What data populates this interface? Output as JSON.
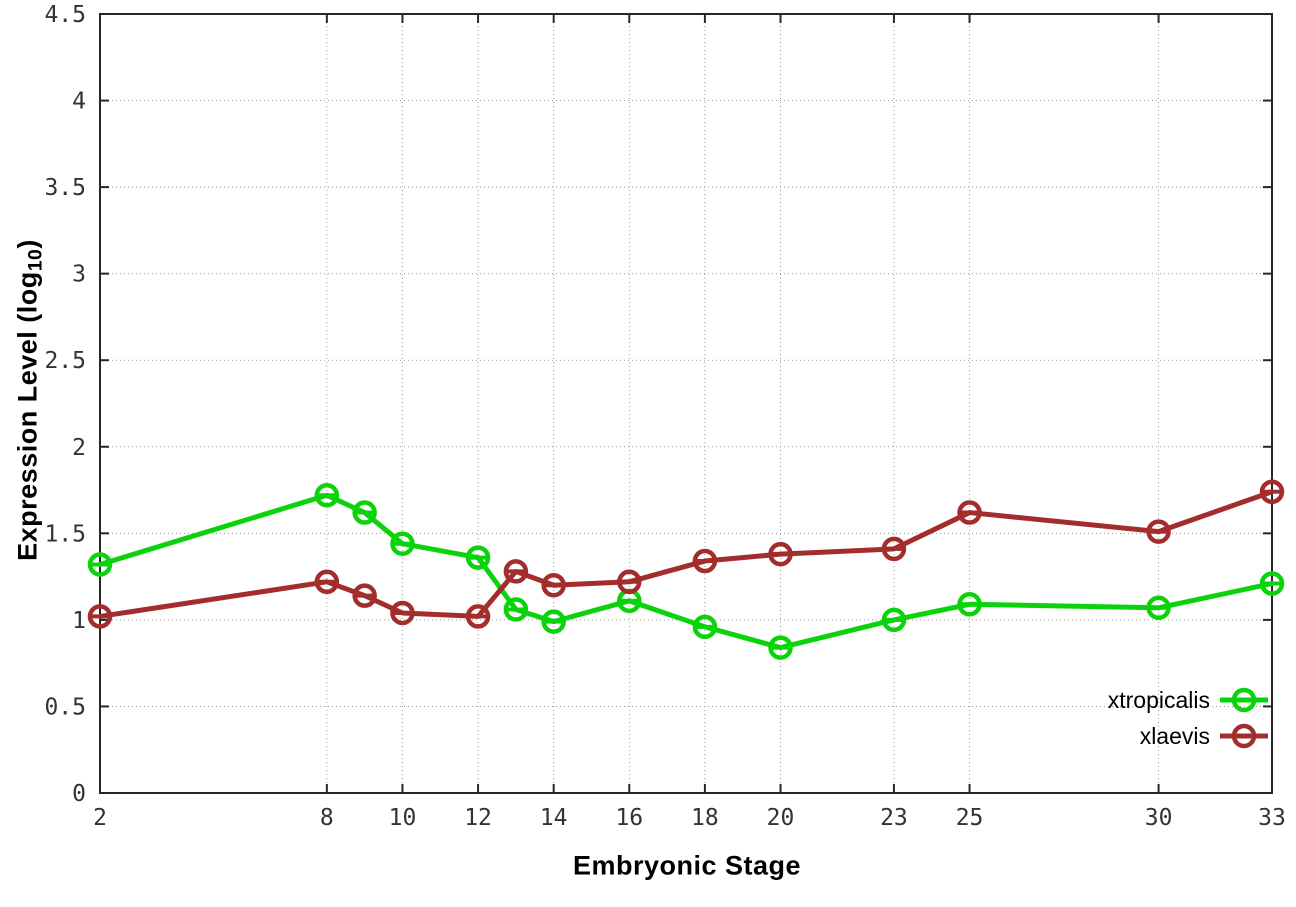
{
  "chart_data": {
    "type": "line",
    "title": "",
    "xlabel": "Embryonic Stage",
    "ylabel": "Expression Level (log10)",
    "ylabel_parts": {
      "main": "Expression Level (log",
      "sub": "10",
      "close": ")"
    },
    "xlim": [
      2,
      33
    ],
    "ylim": [
      0,
      4.5
    ],
    "x_ticks": [
      2,
      8,
      10,
      12,
      14,
      16,
      18,
      20,
      23,
      25,
      30,
      33
    ],
    "x_tick_labels": [
      "2",
      "8",
      "10",
      "12",
      "14",
      "16",
      "18",
      "20",
      "23",
      "25",
      "30",
      "33"
    ],
    "y_ticks": [
      0,
      0.5,
      1,
      1.5,
      2,
      2.5,
      3,
      3.5,
      4,
      4.5
    ],
    "y_tick_labels": [
      "0",
      "0.5",
      "1",
      "1.5",
      "2",
      "2.5",
      "3",
      "3.5",
      "4",
      "4.5"
    ],
    "grid": true,
    "grid_style": "dotted",
    "legend_position": "inside-bottom-right",
    "marker": "open-circle-with-errorbar-cap",
    "colors": {
      "axis": "#262626",
      "grid": "#999999",
      "tick_labels": "#333333",
      "xtropicalis": "#0bd30b",
      "xlaevis": "#a32c2c"
    },
    "series": [
      {
        "name": "xtropicalis",
        "color": "#0bd30b",
        "x": [
          2,
          8,
          9,
          10,
          12,
          13,
          14,
          16,
          18,
          20,
          23,
          25,
          30,
          33
        ],
        "y": [
          1.32,
          1.72,
          1.62,
          1.44,
          1.36,
          1.06,
          0.99,
          1.11,
          0.96,
          0.84,
          1.0,
          1.09,
          1.07,
          1.21
        ]
      },
      {
        "name": "xlaevis",
        "color": "#a32c2c",
        "x": [
          2,
          8,
          9,
          10,
          12,
          13,
          14,
          16,
          18,
          20,
          23,
          25,
          30,
          33
        ],
        "y": [
          1.02,
          1.22,
          1.14,
          1.04,
          1.02,
          1.28,
          1.2,
          1.22,
          1.34,
          1.38,
          1.41,
          1.62,
          1.51,
          1.74
        ]
      }
    ]
  }
}
